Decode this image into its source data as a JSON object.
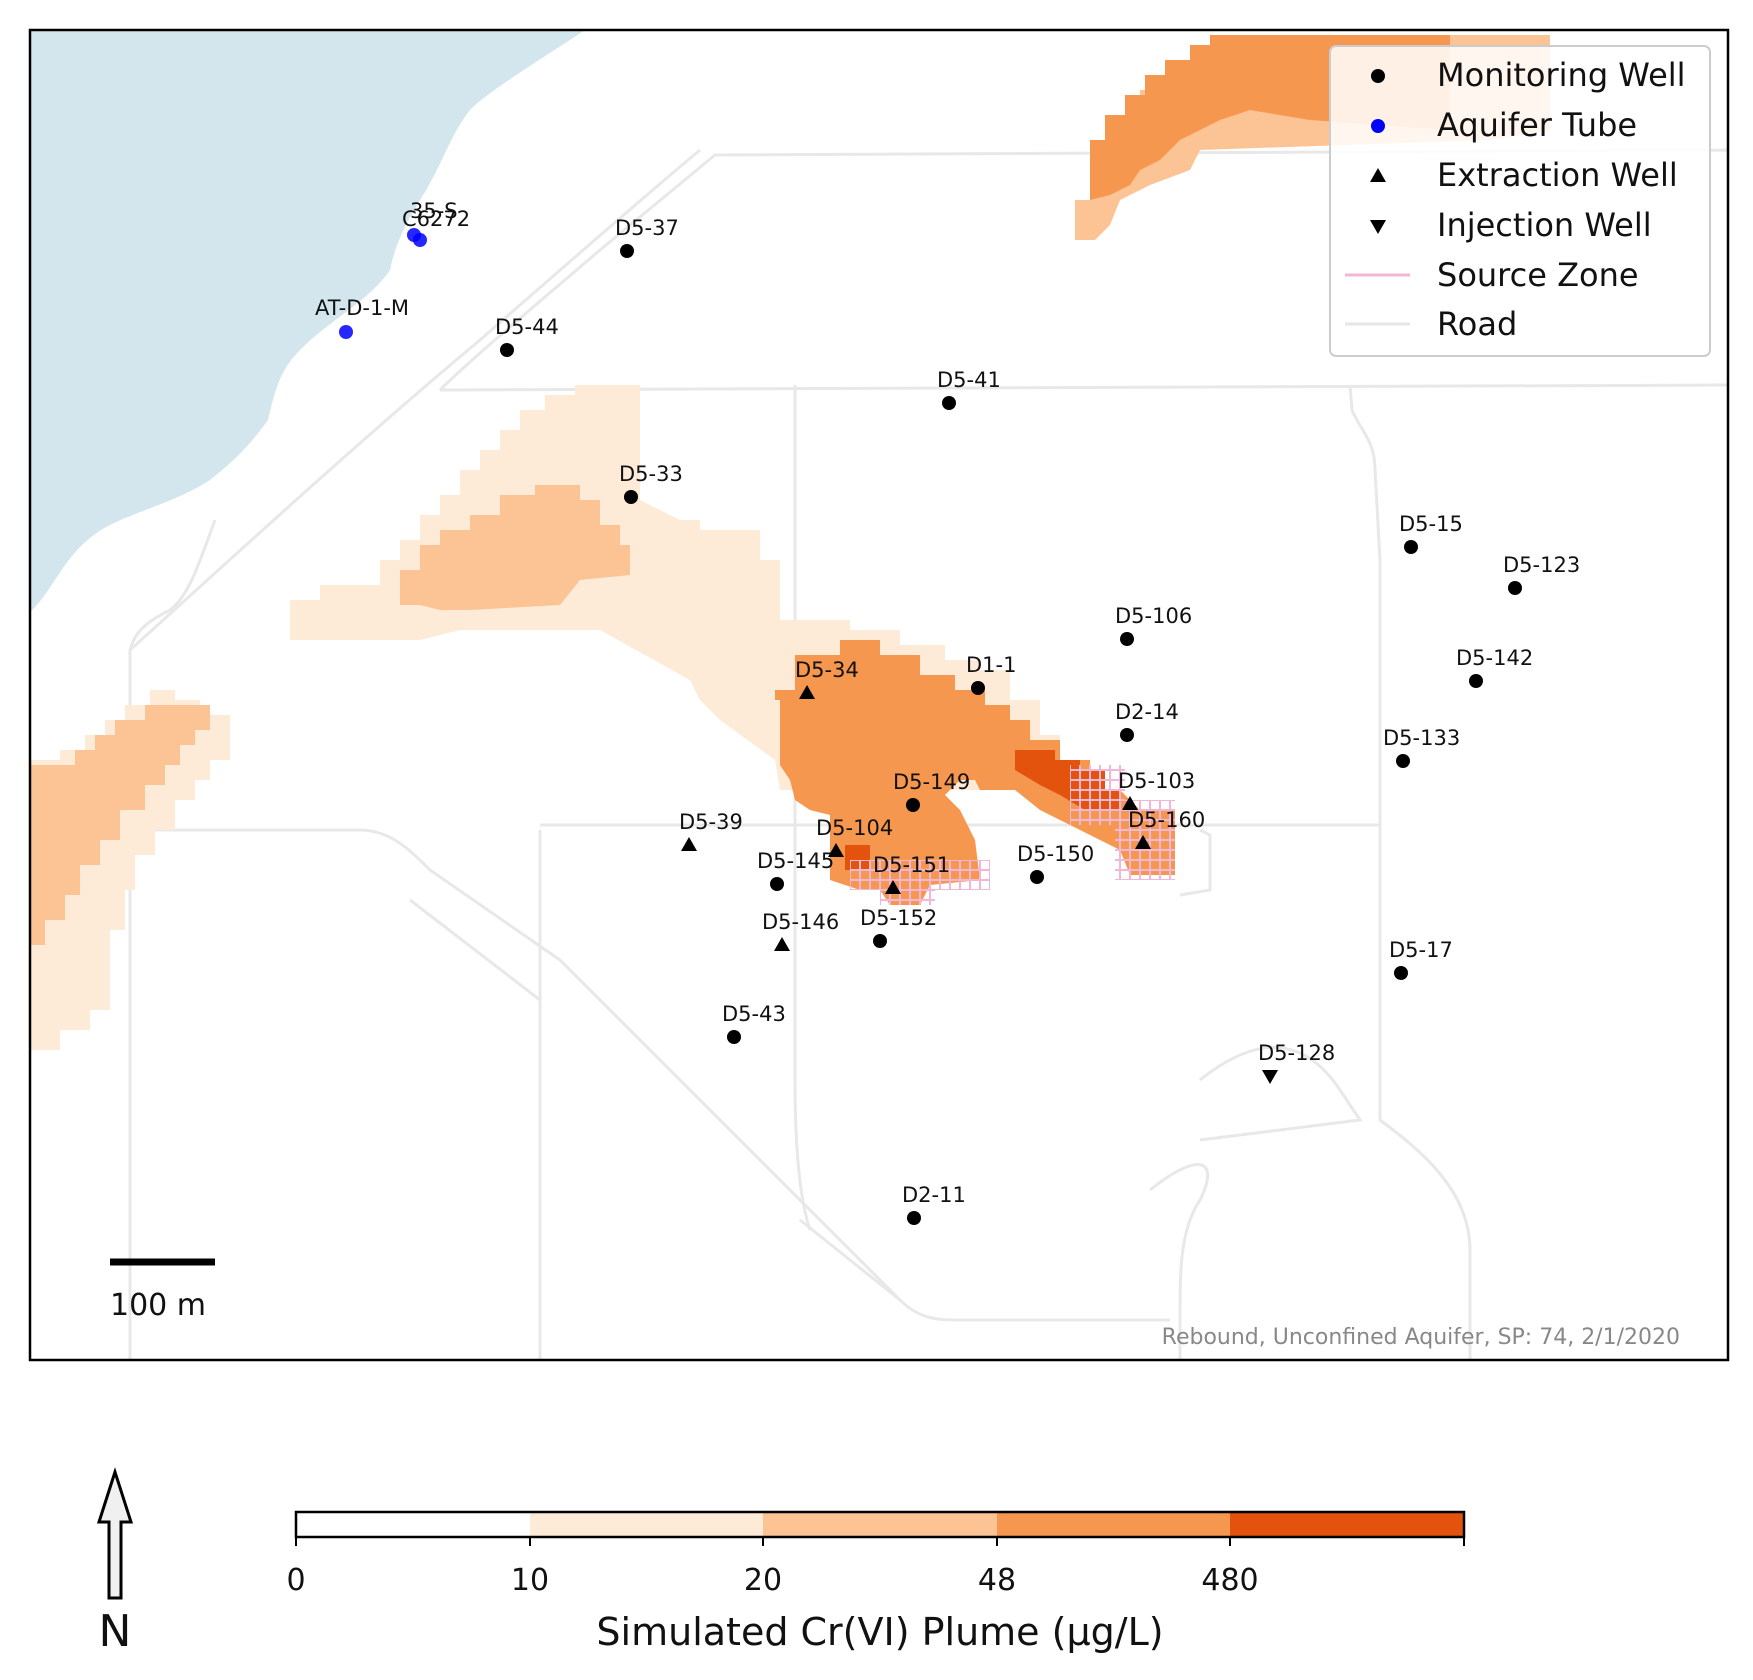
{
  "map": {
    "caption": "Rebound, Unconfined Aquifer, SP: 74, 2/1/2020",
    "scale_bar_label": "100 m",
    "north_label": "N"
  },
  "legend": {
    "items": [
      {
        "label": "Monitoring Well",
        "symbol": "circle",
        "color": "#000000"
      },
      {
        "label": "Aquifer Tube",
        "symbol": "circle",
        "color": "#0000ff"
      },
      {
        "label": "Extraction Well",
        "symbol": "triangle-up",
        "color": "#000000"
      },
      {
        "label": "Injection Well",
        "symbol": "triangle-down",
        "color": "#000000"
      },
      {
        "label": "Source Zone",
        "symbol": "line",
        "color": "#f2b6d6"
      },
      {
        "label": "Road",
        "symbol": "line",
        "color": "#e6e6e6"
      }
    ]
  },
  "colorbar": {
    "title": "Simulated Cr(VI) Plume (µg/L)",
    "ticks": [
      "0",
      "10",
      "20",
      "48",
      "480"
    ],
    "colors": [
      "#ffffff",
      "#fdebd8",
      "#fcc495",
      "#f6974f",
      "#e3530d"
    ]
  },
  "colors": {
    "water": "#d3e6ee",
    "road": "#e8e8e8",
    "source_zone": "#f2b6d6"
  },
  "wells": {
    "monitoring": [
      "D5-37",
      "D5-44",
      "D5-41",
      "D5-33",
      "D5-15",
      "D5-123",
      "D5-106",
      "D1-1",
      "D5-142",
      "D2-14",
      "D5-133",
      "D5-149",
      "D5-145",
      "D5-150",
      "D5-152",
      "D5-17",
      "D5-43",
      "D2-11"
    ],
    "extraction": [
      "D5-34",
      "D5-103",
      "D5-39",
      "D5-160",
      "D5-104",
      "D5-151",
      "D5-146"
    ],
    "injection": [
      "D5-128"
    ],
    "aquifer_tubes": [
      "35-S",
      "C6272",
      "AT-D-1-M"
    ]
  }
}
